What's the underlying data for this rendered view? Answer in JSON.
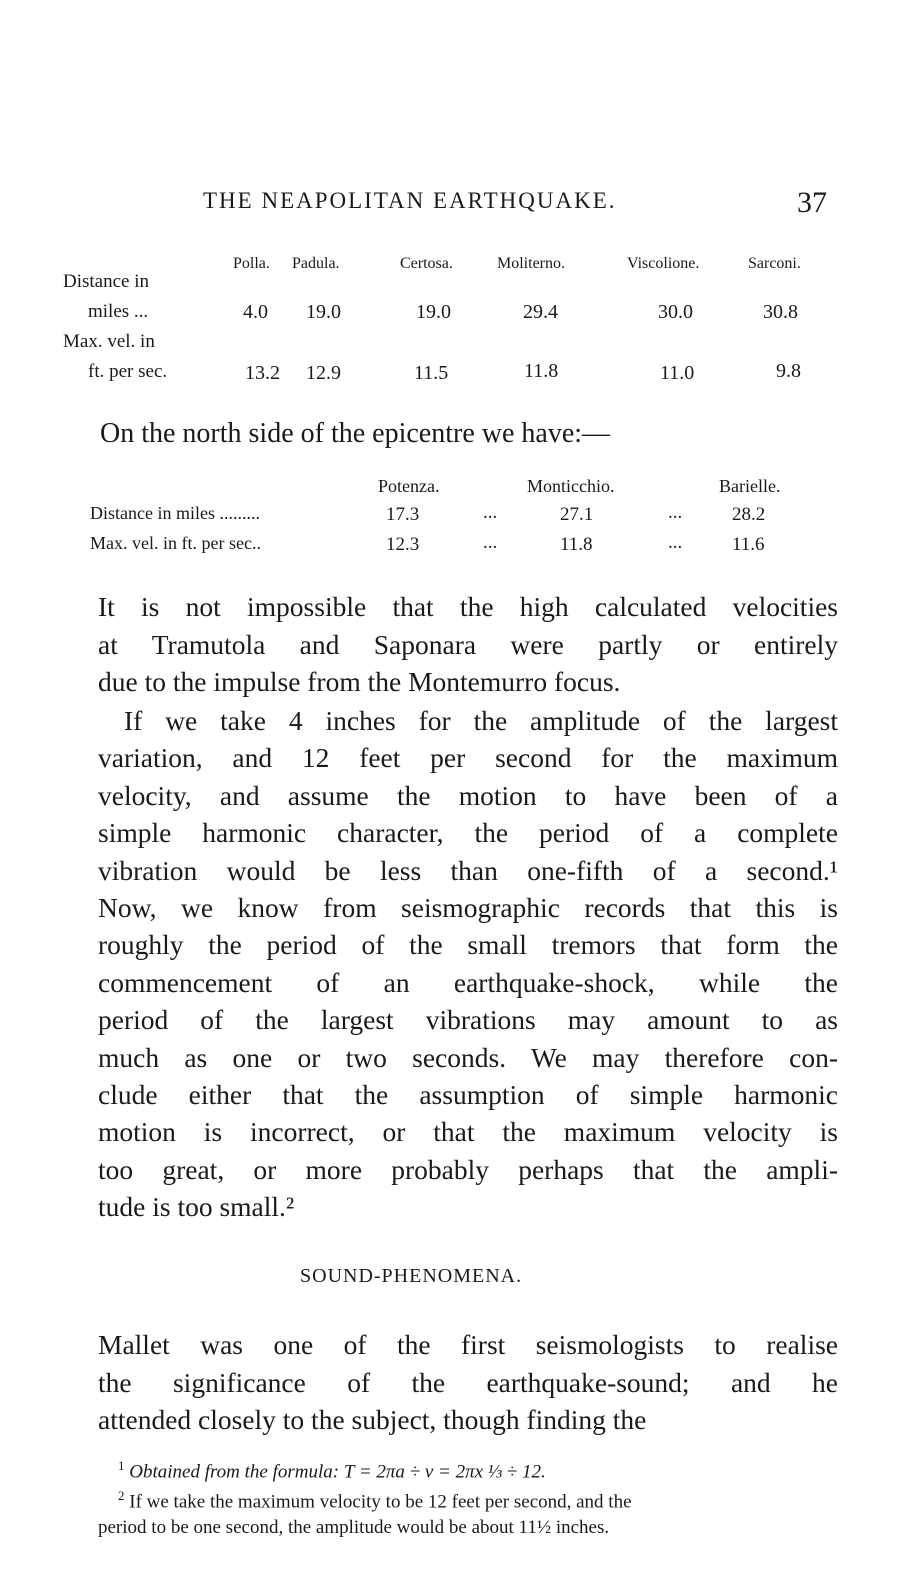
{
  "header": {
    "running_title": "THE NEAPOLITAN EARTHQUAKE.",
    "page_number": "37"
  },
  "table1": {
    "columns": [
      "Polla.",
      "Padula.",
      "Certosa.",
      "Moliterno.",
      "Viscolione.",
      "Sarconi."
    ],
    "rows": [
      {
        "label1": "Distance in",
        "label2": "miles ...",
        "values": [
          "4.0",
          "19.0",
          "19.0",
          "29.4",
          "30.0",
          "30.8"
        ]
      },
      {
        "label1": "Max. vel. in",
        "label2": "ft. per sec.",
        "values": [
          "13.2",
          "12.9",
          "11.5",
          "11.8",
          "11.0",
          "9.8"
        ]
      }
    ]
  },
  "north_intro": "On the north side of the epicentre we have:—",
  "table2": {
    "columns": [
      "Potenza.",
      "Monticchio.",
      "Barielle."
    ],
    "rows": [
      {
        "label": "Distance in miles .........",
        "values": [
          "17.3",
          "27.1",
          "28.2"
        ]
      },
      {
        "label": "Max. vel. in ft. per sec..",
        "values": [
          "12.3",
          "11.8",
          "11.6"
        ]
      }
    ],
    "separator": "..."
  },
  "paragraph1": [
    "It is not impossible that the high calculated velocities",
    "at Tramutola and Saponara were partly or entirely",
    "due to the impulse from the Montemurro focus."
  ],
  "paragraph2": [
    "If we take 4 inches for the amplitude of the largest",
    "variation, and 12 feet per second for the maximum",
    "velocity, and assume the motion to have been of a",
    "simple harmonic character, the period of a complete",
    "vibration would be less than one-fifth of a second.¹",
    "Now, we know from seismographic records that this is",
    "roughly the period of the small tremors that form the",
    "commencement of an earthquake-shock, while the",
    "period of the largest vibrations may amount to as",
    "much as one or two seconds.  We may therefore con-",
    "clude either that the assumption of simple harmonic",
    "motion is incorrect, or that the maximum velocity is",
    "too great, or more probably perhaps that the ampli-",
    "tude is too small.²"
  ],
  "section_heading": "SOUND-PHENOMENA.",
  "paragraph3": [
    "Mallet was one of the first seismologists to realise",
    "the significance of the earthquake-sound; and he",
    "attended closely to the subject, though finding the"
  ],
  "footnotes": [
    {
      "mark": "1",
      "text": "Obtained from the formula:  T = 2πa ÷ v = 2πx ⅓ ÷ 12."
    },
    {
      "mark": "2",
      "text": "If we take the maximum velocity to be 12 feet per second, and the"
    },
    {
      "mark": "",
      "text": "period to be one second, the amplitude would be about 11½ inches."
    }
  ]
}
